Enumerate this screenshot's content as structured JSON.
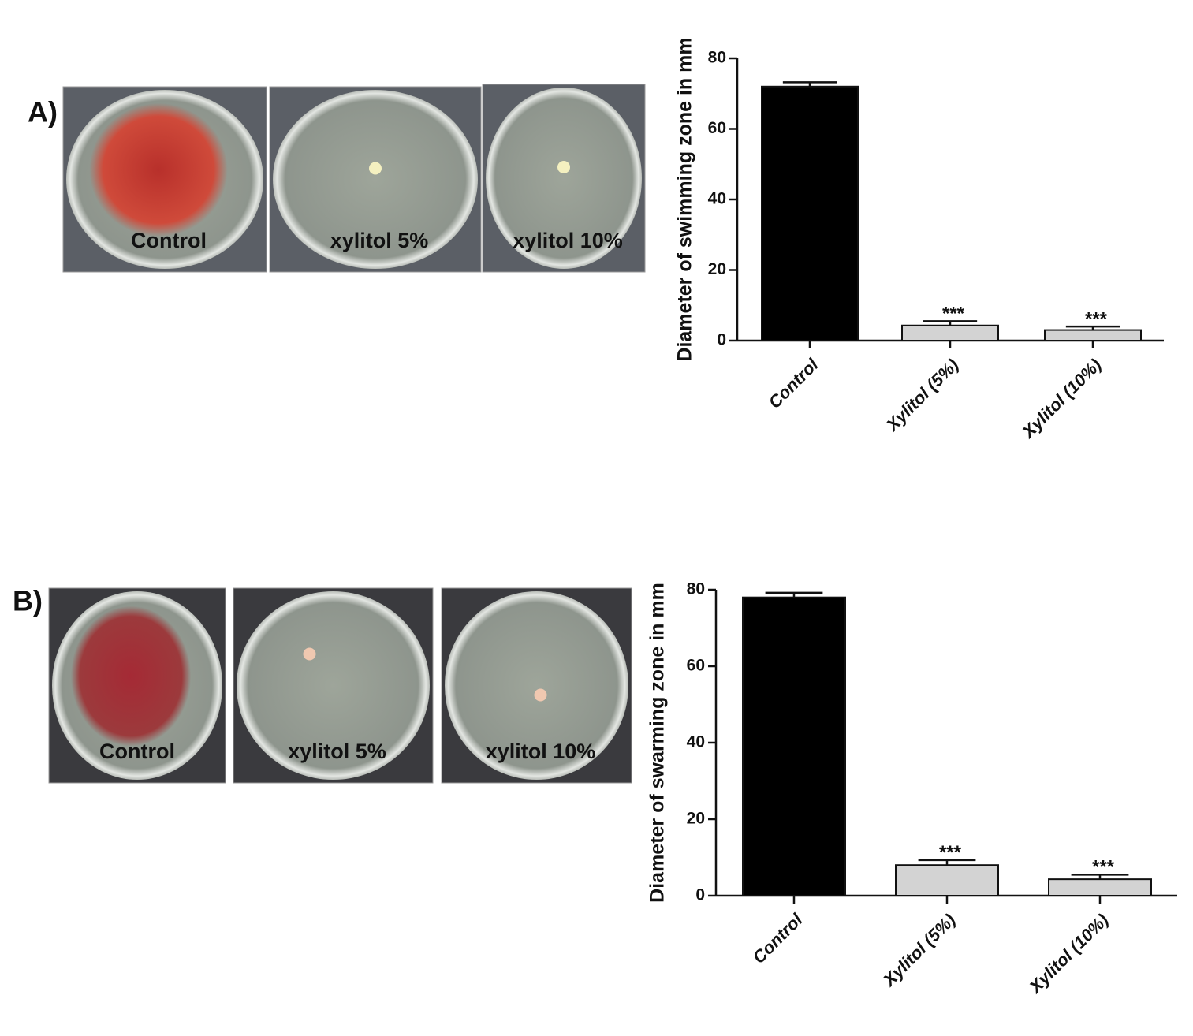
{
  "panels": [
    {
      "label": "A)",
      "photos": [
        {
          "caption": "Control"
        },
        {
          "caption": "xylitol 5%"
        },
        {
          "caption": "xylitol 10%"
        }
      ]
    },
    {
      "label": "B)",
      "photos": [
        {
          "caption": "Control"
        },
        {
          "caption": "xylitol 5%"
        },
        {
          "caption": "xylitol 10%"
        }
      ]
    }
  ],
  "chart_data": [
    {
      "type": "bar",
      "y_label": "Diameter of swimming zone in mm",
      "categories": [
        "Control",
        "Xylitol (5%)",
        "Xylitol (10%)"
      ],
      "values": [
        72,
        4.3,
        3
      ],
      "errors": [
        1.2,
        1.2,
        1
      ],
      "annotations": [
        null,
        "***",
        "***"
      ],
      "colors": [
        "#000000",
        "#d3d3d3",
        "#d3d3d3"
      ],
      "ylim": [
        0,
        80
      ],
      "yticks": [
        0,
        20,
        40,
        60,
        80
      ]
    },
    {
      "type": "bar",
      "y_label": "Diameter of swarming zone in mm",
      "categories": [
        "Control",
        "Xylitol (5%)",
        "Xylitol (10%)"
      ],
      "values": [
        78,
        8,
        4.3
      ],
      "errors": [
        1.2,
        1.3,
        1.2
      ],
      "annotations": [
        null,
        "***",
        "***"
      ],
      "colors": [
        "#000000",
        "#d3d3d3",
        "#d3d3d3"
      ],
      "ylim": [
        0,
        80
      ],
      "yticks": [
        0,
        20,
        40,
        60,
        80
      ]
    }
  ]
}
